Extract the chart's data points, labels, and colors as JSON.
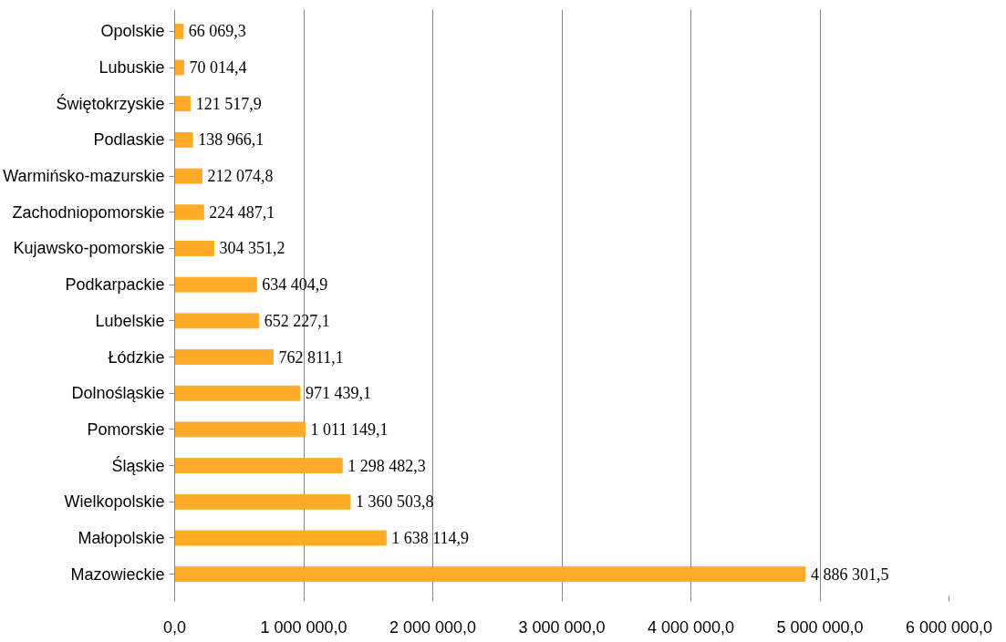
{
  "chart_data": {
    "type": "bar",
    "orientation": "horizontal",
    "categories": [
      "Opolskie",
      "Lubuskie",
      "Świętokrzyskie",
      "Podlaskie",
      "Warmińsko-mazurskie",
      "Zachodniopomorskie",
      "Kujawsko-pomorskie",
      "Podkarpackie",
      "Lubelskie",
      "Łódzkie",
      "Dolnośląskie",
      "Pomorskie",
      "Śląskie",
      "Wielkopolskie",
      "Małopolskie",
      "Mazowieckie"
    ],
    "values": [
      66069.3,
      70014.4,
      121517.9,
      138966.1,
      212074.8,
      224487.1,
      304351.2,
      634404.9,
      652227.1,
      762811.1,
      971439.1,
      1011149.1,
      1298482.3,
      1360503.8,
      1638114.9,
      4886301.5
    ],
    "value_labels": [
      "66 069,3",
      "70 014,4",
      "121 517,9",
      "138 966,1",
      "212 074,8",
      "224 487,1",
      "304 351,2",
      "634 404,9",
      "652 227,1",
      "762 811,1",
      "971 439,1",
      "1 011 149,1",
      "1 298 482,3",
      "1 360 503,8",
      "1 638 114,9",
      "4 886 301,5"
    ],
    "color": "#ffab27",
    "xlim": [
      0,
      6000000
    ],
    "xticks": [
      {
        "value": 0,
        "label": "0,0"
      },
      {
        "value": 1000000,
        "label": "1 000 000,0"
      },
      {
        "value": 2000000,
        "label": "2 000 000,0"
      },
      {
        "value": 3000000,
        "label": "3 000 000,0"
      },
      {
        "value": 4000000,
        "label": "4 000 000,0"
      },
      {
        "value": 5000000,
        "label": "5 000 000,0"
      },
      {
        "value": 6000000,
        "label": "6 000 000,0"
      }
    ],
    "grid": "x"
  }
}
